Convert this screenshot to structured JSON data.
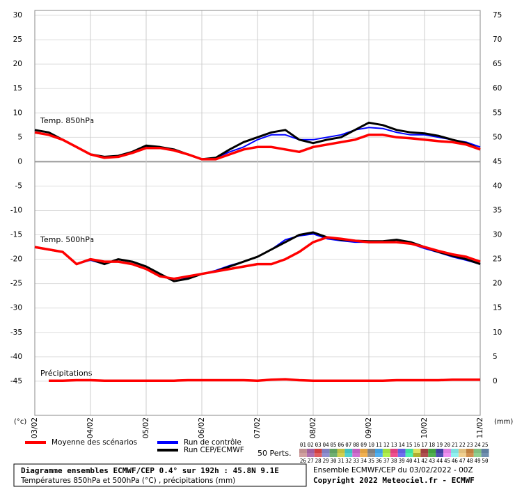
{
  "chart_data": {
    "type": "line",
    "annotations": [
      "Temp. 850hPa",
      "Temp. 500hPa",
      "Précipitations"
    ],
    "ylabel": "(°c)",
    "y2label": "(mm)",
    "xlim": [
      0,
      8
    ],
    "xticks": [
      {
        "value": 0,
        "label": "03/02"
      },
      {
        "value": 1,
        "label": "04/02"
      },
      {
        "value": 2,
        "label": "05/02"
      },
      {
        "value": 3,
        "label": "06/02"
      },
      {
        "value": 4,
        "label": "07/02"
      },
      {
        "value": 5,
        "label": "08/02"
      },
      {
        "value": 6,
        "label": "09/02"
      },
      {
        "value": 7,
        "label": "10/02"
      },
      {
        "value": 8,
        "label": "11/02"
      }
    ],
    "ylim": [
      -52,
      31
    ],
    "yticks": [
      30,
      25,
      20,
      15,
      10,
      5,
      0,
      -5,
      -10,
      -15,
      -20,
      -25,
      -30,
      -35,
      -40,
      -45
    ],
    "y2lim": [
      -7,
      76
    ],
    "y2ticks": [
      75,
      70,
      65,
      60,
      55,
      50,
      45,
      40,
      35,
      30,
      25,
      20,
      15,
      10,
      5,
      0
    ],
    "grid": true,
    "x": [
      0,
      0.25,
      0.5,
      0.75,
      1,
      1.25,
      1.5,
      1.75,
      2,
      2.25,
      2.5,
      2.75,
      3,
      3.25,
      3.5,
      3.75,
      4,
      4.25,
      4.5,
      4.75,
      5,
      5.25,
      5.5,
      5.75,
      6,
      6.25,
      6.5,
      6.75,
      7,
      7.25,
      7.5,
      7.75,
      8
    ],
    "series": [
      {
        "name": "Run de contrôle",
        "color": "#0000ff",
        "values_850": [
          6.5,
          6,
          4.5,
          3,
          1.5,
          1,
          1.2,
          2,
          3,
          3,
          2.5,
          1.5,
          0.5,
          0.8,
          2,
          3,
          4.5,
          5.5,
          5.5,
          4.5,
          4.5,
          5,
          5.5,
          6.5,
          7,
          6.8,
          6,
          5.5,
          5.5,
          5,
          4.5,
          4,
          3
        ],
        "values_500": [
          -17.5,
          -18,
          -18.5,
          -21,
          -20.2,
          -21,
          -20,
          -20.5,
          -21.5,
          -23,
          -24.5,
          -23.8,
          -23,
          -22.3,
          -21.3,
          -20.5,
          -19.5,
          -18,
          -16,
          -15.2,
          -14.8,
          -15.8,
          -16.2,
          -16.5,
          -16.5,
          -16.3,
          -16,
          -16.8,
          -17.8,
          -18.6,
          -19.5,
          -20.2,
          -21
        ]
      },
      {
        "name": "Run CEP/ECMWF",
        "color": "#000000",
        "values_850": [
          6.5,
          6,
          4.5,
          3,
          1.5,
          1,
          1.2,
          2,
          3.3,
          3,
          2.5,
          1.5,
          0.5,
          0.8,
          2.5,
          4,
          5,
          6,
          6.5,
          4.5,
          3.8,
          4.5,
          5,
          6.5,
          8,
          7.5,
          6.5,
          6,
          5.8,
          5.3,
          4.5,
          3.8,
          2.5
        ],
        "values_500": [
          -17.5,
          -18,
          -18.5,
          -21,
          -20,
          -21,
          -20,
          -20.5,
          -21.5,
          -23,
          -24.5,
          -24,
          -23,
          -22.5,
          -21.5,
          -20.5,
          -19.5,
          -18,
          -16.5,
          -15,
          -14.5,
          -15.5,
          -16,
          -16.2,
          -16.3,
          -16.3,
          -16,
          -16.5,
          -17.5,
          -18.5,
          -19.3,
          -20,
          -21
        ]
      },
      {
        "name": "Moyenne des scénarios",
        "color": "#ff0000",
        "values_850": [
          6,
          5.5,
          4.5,
          3,
          1.5,
          0.8,
          1,
          1.8,
          2.8,
          2.8,
          2.3,
          1.5,
          0.5,
          0.5,
          1.5,
          2.5,
          3,
          3,
          2.5,
          2,
          3,
          3.5,
          4,
          4.5,
          5.5,
          5.5,
          5,
          4.8,
          4.5,
          4.2,
          4,
          3.5,
          2.5
        ],
        "values_500": [
          -17.5,
          -18,
          -18.5,
          -21,
          -20,
          -20.5,
          -20.5,
          -21,
          -22,
          -23.5,
          -24,
          -23.5,
          -23,
          -22.5,
          -22,
          -21.5,
          -21,
          -21,
          -20,
          -18.5,
          -16.5,
          -15.5,
          -15.8,
          -16.2,
          -16.5,
          -16.5,
          -16.5,
          -16.8,
          -17.5,
          -18.3,
          -19,
          -19.5,
          -20.5
        ],
        "precip": [
          null,
          0.1,
          0.1,
          0.2,
          0.2,
          0.1,
          0.1,
          0.1,
          0.1,
          0.1,
          0.1,
          0.2,
          0.2,
          0.2,
          0.2,
          0.2,
          0.1,
          0.3,
          0.4,
          0.2,
          0.1,
          0.1,
          0.1,
          0.1,
          0.1,
          0.1,
          0.2,
          0.2,
          0.2,
          0.2,
          0.3,
          0.3,
          0.3
        ]
      }
    ],
    "perturbations_label": "50 Perts.",
    "perturbations": [
      {
        "label": "01",
        "color": "#c09090"
      },
      {
        "label": "02",
        "color": "#a060a0"
      },
      {
        "label": "03",
        "color": "#d04040"
      },
      {
        "label": "04",
        "color": "#8080c0"
      },
      {
        "label": "05",
        "color": "#60a060"
      },
      {
        "label": "06",
        "color": "#c0c040"
      },
      {
        "label": "07",
        "color": "#40c0c0"
      },
      {
        "label": "08",
        "color": "#c060c0"
      },
      {
        "label": "09",
        "color": "#e0a040"
      },
      {
        "label": "10",
        "color": "#808080"
      },
      {
        "label": "11",
        "color": "#40a0e0"
      },
      {
        "label": "12",
        "color": "#a0e040"
      },
      {
        "label": "13",
        "color": "#e04080"
      },
      {
        "label": "14",
        "color": "#6060e0"
      },
      {
        "label": "15",
        "color": "#40e0a0"
      },
      {
        "label": "16",
        "color": "#e0e060"
      },
      {
        "label": "17",
        "color": "#a04040"
      },
      {
        "label": "18",
        "color": "#40a040"
      },
      {
        "label": "19",
        "color": "#4040a0"
      },
      {
        "label": "20",
        "color": "#e080e0"
      },
      {
        "label": "21",
        "color": "#80e0e0"
      },
      {
        "label": "22",
        "color": "#e0c080"
      },
      {
        "label": "23",
        "color": "#c08040"
      },
      {
        "label": "24",
        "color": "#80c080"
      },
      {
        "label": "25",
        "color": "#6080a0"
      },
      {
        "label": "26",
        "color": "#d0a0a0"
      },
      {
        "label": "27",
        "color": "#b070b0"
      },
      {
        "label": "28",
        "color": "#e06060"
      },
      {
        "label": "29",
        "color": "#9090d0"
      },
      {
        "label": "30",
        "color": "#70b070"
      },
      {
        "label": "31",
        "color": "#d0d050"
      },
      {
        "label": "32",
        "color": "#50d0d0"
      },
      {
        "label": "33",
        "color": "#d070d0"
      },
      {
        "label": "34",
        "color": "#f0b050"
      },
      {
        "label": "35",
        "color": "#909090"
      },
      {
        "label": "36",
        "color": "#50b0f0"
      },
      {
        "label": "37",
        "color": "#b0f050"
      },
      {
        "label": "38",
        "color": "#f05090"
      },
      {
        "label": "39",
        "color": "#7070f0"
      },
      {
        "label": "40",
        "color": "#50f0b0"
      },
      {
        "label": "41",
        "color": "#b0b030"
      },
      {
        "label": "42",
        "color": "#b05050"
      },
      {
        "label": "43",
        "color": "#50b050"
      },
      {
        "label": "44",
        "color": "#5050b0"
      },
      {
        "label": "45",
        "color": "#f090f0"
      },
      {
        "label": "46",
        "color": "#90f0f0"
      },
      {
        "label": "47",
        "color": "#f0d090"
      },
      {
        "label": "48",
        "color": "#d09050"
      },
      {
        "label": "49",
        "color": "#90d090"
      },
      {
        "label": "50",
        "color": "#7090b0"
      }
    ],
    "footer": {
      "title": "Diagramme ensembles ECMWF/CEP 0.4° sur 192h : 45.8N 9.1E",
      "subtitle": "Températures 850hPa et 500hPa (°C) , précipitations (mm)",
      "run": "Ensemble ECMWF/CEP du 03/02/2022 - 00Z",
      "copyright": "Copyright 2022 Meteociel.fr - ECMWF"
    }
  }
}
